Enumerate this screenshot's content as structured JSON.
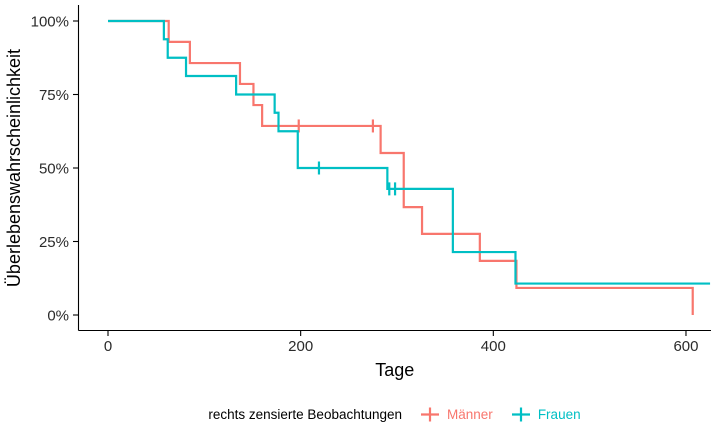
{
  "chart_data": {
    "type": "line",
    "subtype": "kaplan-meier-step-curves",
    "title": "",
    "xlabel": "Tage",
    "ylabel": "Überlebenswahrscheinlichkeit",
    "x_ticks": [
      0,
      200,
      400,
      600
    ],
    "x_tick_labels": [
      "0",
      "200",
      "400",
      "600"
    ],
    "y_ticks": [
      100,
      75,
      50,
      25,
      0
    ],
    "y_tick_labels": [
      "100%",
      "75%",
      "50%",
      "25%",
      "0%"
    ],
    "xlim": [
      0,
      625
    ],
    "ylim": [
      0,
      100
    ],
    "grid": false,
    "legend": {
      "title": "rechts zensierte Beobachtungen",
      "position": "bottom"
    },
    "series": [
      {
        "name": "Männer",
        "color": "#F8766D",
        "steps": [
          [
            0,
            100
          ],
          [
            63,
            92.9
          ],
          [
            85,
            85.7
          ],
          [
            137,
            78.6
          ],
          [
            151,
            71.4
          ],
          [
            160,
            64.3
          ],
          [
            283,
            55.1
          ],
          [
            307,
            36.7
          ],
          [
            326,
            27.6
          ],
          [
            386,
            18.4
          ],
          [
            424,
            9.2
          ],
          [
            607,
            0
          ]
        ],
        "end_day": 607,
        "censored": [
          [
            198,
            64.3
          ],
          [
            275,
            64.3
          ]
        ]
      },
      {
        "name": "Frauen",
        "color": "#00BFC4",
        "steps": [
          [
            0,
            100
          ],
          [
            58,
            93.8
          ],
          [
            62,
            87.5
          ],
          [
            81,
            81.3
          ],
          [
            133,
            75
          ],
          [
            173,
            68.8
          ],
          [
            177,
            62.5
          ],
          [
            197,
            50
          ],
          [
            290,
            42.9
          ],
          [
            358,
            21.4
          ],
          [
            423,
            10.7
          ]
        ],
        "end_day": 625,
        "censored": [
          [
            219,
            50
          ],
          [
            292,
            42.9
          ],
          [
            298,
            42.9
          ]
        ]
      }
    ]
  }
}
